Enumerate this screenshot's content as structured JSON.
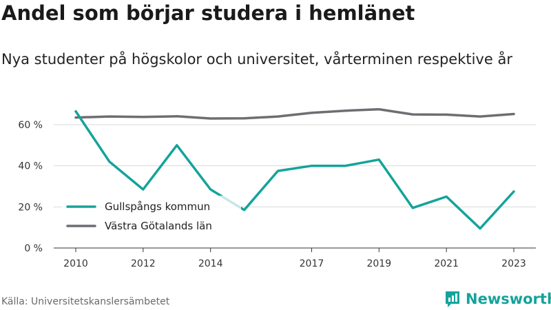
{
  "header": {
    "title": "Andel som börjar studera i hemlänet",
    "subtitle": "Nya studenter på högskolor och universitet, vårterminen respektive år"
  },
  "footer": {
    "source": "Källa: Universitetskanslersämbetet",
    "brand_name": "Newsworthy"
  },
  "colors": {
    "accent": "#14a39a",
    "gray_series": "#6e6d72",
    "grid": "#d9d9d9"
  },
  "chart_data": {
    "type": "line",
    "title": "Andel som börjar studera i hemlänet",
    "subtitle": "Nya studenter på högskolor och universitet, vårterminen respektive år",
    "x": [
      2010,
      2011,
      2012,
      2013,
      2014,
      2015,
      2016,
      2017,
      2018,
      2019,
      2020,
      2021,
      2022,
      2023
    ],
    "x_tick_labels": [
      "2010",
      "2012",
      "2014",
      "2017",
      "2019",
      "2021",
      "2023"
    ],
    "x_tick_values": [
      2010,
      2012,
      2014,
      2017,
      2019,
      2021,
      2023
    ],
    "y_tick_labels": [
      "0 %",
      "20 %",
      "40 %",
      "60 %"
    ],
    "y_tick_values": [
      0,
      20,
      40,
      60
    ],
    "ylim": [
      0,
      70
    ],
    "grid": "horizontal",
    "legend_position": "bottom-left",
    "series": [
      {
        "name": "Gullspångs kommun",
        "color": "#14a39a",
        "values": [
          66.5,
          42,
          28.5,
          50,
          28.5,
          18.5,
          37.5,
          40,
          40,
          43,
          19.5,
          25,
          9.5,
          27.5
        ]
      },
      {
        "name": "Västra Götalands län",
        "color": "#6e6d72",
        "values": [
          63.5,
          64,
          63.8,
          64.1,
          63,
          63.1,
          64,
          65.8,
          66.8,
          67.5,
          65,
          64.9,
          64,
          65.2
        ]
      }
    ]
  }
}
